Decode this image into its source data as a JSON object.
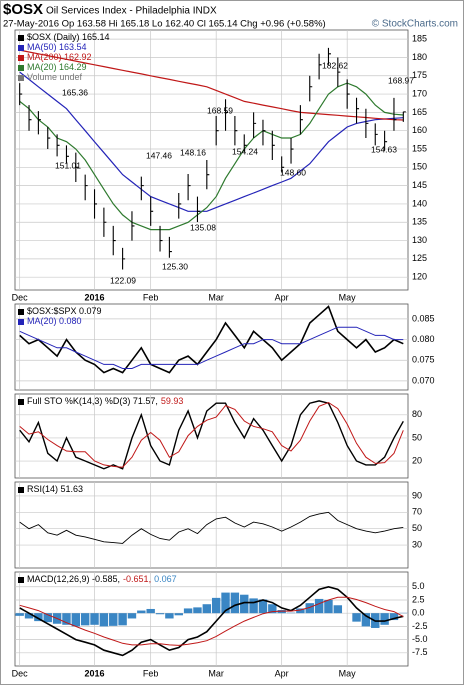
{
  "header": {
    "symbol": "$OSX",
    "name": "Oil Services Index - Philadelphia INDX",
    "quote": "27-May-2016   Op 163.58  Hi 165.18  Lo 162.40  Cl 165.14  Chg +0.96 (+0.58%)",
    "credit": "© StockCharts.com"
  },
  "chart_data": [
    {
      "type": "ohlc",
      "categories": [
        "Dec",
        null,
        null,
        null,
        null,
        null,
        null,
        null,
        "2016",
        null,
        null,
        null,
        null,
        null,
        "Feb",
        null,
        null,
        null,
        null,
        null,
        null,
        "Mar",
        null,
        null,
        null,
        null,
        null,
        null,
        "Apr",
        null,
        null,
        null,
        null,
        null,
        null,
        "May",
        null,
        null,
        null,
        null,
        null,
        null
      ],
      "legend_rows": [
        [
          {
            "text": "$OSX (Daily) 165.14",
            "color": "#000000"
          }
        ],
        [
          {
            "text": "MA(50) 163.54",
            "color": "#2424b8"
          }
        ],
        [
          {
            "text": "MA(200) 162.92",
            "color": "#c01818"
          }
        ],
        [
          {
            "text": "MA(20) 164.29",
            "color": "#2e7a2e"
          }
        ],
        [
          {
            "text": "Volume undef",
            "color": "#777777"
          }
        ]
      ],
      "ohlc": {
        "color": "#000000",
        "high": [
          173,
          167,
          165.36,
          161,
          159,
          156,
          154,
          148,
          144,
          139,
          134,
          128,
          138,
          147.46,
          142,
          134,
          131,
          143,
          148.16,
          142,
          152,
          164,
          168.59,
          164,
          159,
          165,
          163,
          160,
          153,
          158,
          167,
          175,
          181,
          182.62,
          180,
          174,
          169,
          166,
          162,
          160,
          168.97,
          165.18
        ],
        "low": [
          167,
          160,
          159,
          155,
          153,
          151.01,
          146,
          141,
          136,
          131,
          126,
          122.09,
          130,
          141,
          134,
          127,
          125.3,
          136,
          141,
          135.08,
          144,
          156,
          160,
          156,
          154.24,
          158,
          156,
          152,
          148.6,
          151,
          159,
          168,
          174,
          178,
          172,
          166,
          162,
          158,
          156,
          154.63,
          160,
          162.4
        ],
        "close": [
          170,
          163,
          163,
          158,
          156,
          153,
          150,
          145,
          140,
          135,
          130,
          125,
          134,
          145,
          138,
          130,
          127,
          140,
          145,
          138,
          148,
          160,
          165,
          160,
          156,
          162,
          160,
          156,
          150,
          155,
          163,
          172,
          178,
          181,
          176,
          170,
          166,
          162,
          159,
          157,
          163,
          165.14
        ]
      },
      "series": [
        {
          "color": "#2424b8",
          "values": [
            176,
            174,
            172,
            170,
            168,
            166,
            163,
            160,
            157,
            154,
            151,
            148,
            146,
            144,
            142,
            141,
            140,
            139,
            138,
            138,
            138,
            139,
            140,
            141,
            142,
            143,
            144,
            145,
            146,
            147,
            149,
            151,
            154,
            157,
            159,
            161,
            162,
            162.5,
            163,
            163.2,
            163.4,
            163.54
          ]
        },
        {
          "color": "#c01818",
          "values": [
            182,
            181.5,
            181,
            180.5,
            180,
            179.5,
            179,
            178.5,
            178,
            177.5,
            177,
            176.5,
            176,
            175.5,
            175,
            174.5,
            174,
            173.5,
            173,
            172.5,
            172,
            171,
            170,
            169,
            168,
            167.5,
            167,
            166.5,
            166,
            165.5,
            165,
            164.8,
            164.6,
            164.4,
            164.2,
            164,
            163.8,
            163.6,
            163.4,
            163.2,
            163,
            162.92
          ]
        },
        {
          "color": "#2e7a2e",
          "values": [
            168,
            166,
            163,
            161,
            158,
            157,
            155,
            152,
            148,
            144,
            140,
            137,
            135,
            134,
            133,
            133,
            133,
            134,
            135,
            137,
            139,
            142,
            147,
            151,
            155,
            158,
            160,
            159,
            158,
            158,
            159,
            162,
            166,
            170,
            172,
            173,
            172,
            170,
            167,
            165,
            164.5,
            164.29
          ]
        }
      ],
      "annotations": [
        "165.36",
        "151.01",
        "147.46",
        "148.16",
        "168.59",
        "154.24",
        "148.60",
        "182.62",
        "168.97",
        "154.63",
        "135.08",
        "125.30",
        "122.09"
      ],
      "ylim": [
        116.5,
        187.5
      ],
      "yticks": [
        120,
        125,
        130,
        135,
        140,
        145,
        150,
        155,
        160,
        165,
        170,
        175,
        180,
        185
      ],
      "grid": true
    },
    {
      "type": "line",
      "legend_rows": [
        [
          {
            "text": "$OSX:$SPX 0.079",
            "color": "#000000"
          }
        ],
        [
          {
            "text": "MA(20) 0.080",
            "color": "#2424b8"
          }
        ]
      ],
      "series": [
        {
          "color": "#000000",
          "width": 1.6,
          "values": [
            0.081,
            0.079,
            0.08,
            0.078,
            0.076,
            0.08,
            0.077,
            0.075,
            0.074,
            0.072,
            0.073,
            0.072,
            0.075,
            0.078,
            0.074,
            0.073,
            0.072,
            0.075,
            0.076,
            0.074,
            0.077,
            0.08,
            0.084,
            0.081,
            0.078,
            0.082,
            0.08,
            0.078,
            0.075,
            0.077,
            0.079,
            0.084,
            0.086,
            0.088,
            0.082,
            0.08,
            0.078,
            0.08,
            0.077,
            0.078,
            0.08,
            0.079
          ]
        },
        {
          "color": "#2424b8",
          "width": 1,
          "values": [
            0.082,
            0.081,
            0.08,
            0.079,
            0.078,
            0.078,
            0.077,
            0.076,
            0.075,
            0.074,
            0.074,
            0.073,
            0.073,
            0.074,
            0.074,
            0.074,
            0.074,
            0.074,
            0.074,
            0.074,
            0.075,
            0.076,
            0.077,
            0.078,
            0.079,
            0.079,
            0.08,
            0.08,
            0.079,
            0.079,
            0.079,
            0.08,
            0.081,
            0.082,
            0.083,
            0.083,
            0.083,
            0.082,
            0.081,
            0.081,
            0.08,
            0.08
          ]
        }
      ],
      "ylim": [
        0.0678,
        0.0886
      ],
      "yticks": [
        {
          "value": 0.07,
          "label": "0.070"
        },
        0.075,
        {
          "value": 0.08,
          "label": "0.080"
        },
        0.085
      ],
      "grid": true
    },
    {
      "type": "line",
      "legend_rows": [
        [
          {
            "text": "Full STO %K(14,3) %D(3) 71.57,",
            "color": "#000000"
          },
          {
            "text": "59.93",
            "color": "#c01818"
          }
        ]
      ],
      "series": [
        {
          "color": "#000000",
          "width": 1.4,
          "values": [
            60,
            45,
            70,
            30,
            20,
            50,
            25,
            20,
            15,
            10,
            15,
            10,
            50,
            80,
            40,
            20,
            15,
            60,
            85,
            50,
            85,
            95,
            95,
            70,
            50,
            75,
            60,
            40,
            20,
            40,
            80,
            95,
            98,
            95,
            70,
            40,
            20,
            15,
            15,
            25,
            50,
            71.57
          ]
        },
        {
          "color": "#c01818",
          "width": 1,
          "values": [
            65,
            55,
            58,
            48,
            40,
            33,
            32,
            32,
            20,
            15,
            13,
            12,
            25,
            47,
            57,
            47,
            25,
            32,
            53,
            65,
            73,
            77,
            92,
            87,
            72,
            65,
            62,
            58,
            40,
            33,
            47,
            72,
            91,
            96,
            88,
            68,
            43,
            25,
            17,
            18,
            30,
            59.93
          ]
        }
      ],
      "ylim": [
        -2,
        107
      ],
      "yticks": [
        20,
        50,
        80
      ],
      "grid": true
    },
    {
      "type": "line",
      "legend_rows": [
        [
          {
            "text": "RSI(14) 51.63",
            "color": "#000000"
          }
        ]
      ],
      "series": [
        {
          "color": "#000000",
          "width": 0.9,
          "values": [
            58,
            50,
            55,
            45,
            42,
            48,
            42,
            40,
            37,
            34,
            33,
            32,
            42,
            50,
            43,
            38,
            36,
            46,
            50,
            44,
            55,
            62,
            64,
            57,
            52,
            58,
            56,
            52,
            47,
            52,
            58,
            65,
            68,
            70,
            60,
            55,
            50,
            47,
            45,
            47,
            50,
            51.63
          ]
        }
      ],
      "ylim": [
        2,
        107
      ],
      "yticks": [
        30,
        50,
        70,
        90
      ],
      "grid": true
    },
    {
      "type": "macd",
      "categories": [
        "Dec",
        null,
        null,
        null,
        null,
        null,
        null,
        null,
        "2016",
        null,
        null,
        null,
        null,
        null,
        "Feb",
        null,
        null,
        null,
        null,
        null,
        null,
        "Mar",
        null,
        null,
        null,
        null,
        null,
        null,
        "Apr",
        null,
        null,
        null,
        null,
        null,
        null,
        "May",
        null,
        null,
        null,
        null,
        null,
        null
      ],
      "legend_rows": [
        [
          {
            "text": "MACD(12,26,9) -0.585,",
            "color": "#000000"
          },
          {
            "text": "-0.651,",
            "color": "#c01818"
          },
          {
            "text": "0.067",
            "color": "#3a86c4"
          }
        ]
      ],
      "series": [
        {
          "color": "#3a86c4",
          "style": "histogram",
          "values": [
            -0.5,
            -1,
            -1.5,
            -1.7,
            -2,
            -2.2,
            -2.5,
            -2.3,
            -2.2,
            -2.5,
            -2.4,
            -2.3,
            -1,
            0.5,
            0.8,
            -0.2,
            -1,
            -0.4,
            0.9,
            1.1,
            1.7,
            2.9,
            3.9,
            3.9,
            3.5,
            2.8,
            2.6,
            1.7,
            0.6,
            0.1,
            0.9,
            1.9,
            2.7,
            2.5,
            1.5,
            0,
            -1.6,
            -2.5,
            -2.8,
            -2.2,
            -1.3,
            0.067
          ]
        },
        {
          "color": "#000000",
          "width": 1.6,
          "values": [
            1,
            0,
            -1,
            -2,
            -3,
            -4,
            -5,
            -5.5,
            -6,
            -7,
            -7.5,
            -8,
            -7,
            -5.5,
            -5,
            -6,
            -7,
            -6.5,
            -5,
            -4.5,
            -3.5,
            -1.5,
            0.5,
            1.5,
            2,
            2,
            2.5,
            2,
            1,
            0.5,
            1.5,
            3,
            4.5,
            5,
            4.5,
            3,
            1,
            -0.5,
            -1.5,
            -1.5,
            -1,
            -0.585
          ]
        },
        {
          "color": "#c01818",
          "width": 1,
          "values": [
            1.5,
            1,
            0.5,
            -0.3,
            -1,
            -1.8,
            -2.5,
            -3.2,
            -3.8,
            -4.5,
            -5.1,
            -5.7,
            -6,
            -6,
            -5.8,
            -5.8,
            -6,
            -6.1,
            -5.9,
            -5.6,
            -5.2,
            -4.4,
            -3.4,
            -2.4,
            -1.5,
            -0.8,
            -0.1,
            0.3,
            0.4,
            0.4,
            0.6,
            1.1,
            1.8,
            2.5,
            3,
            3,
            2.6,
            2,
            1.3,
            0.7,
            0.3,
            -0.651
          ]
        }
      ],
      "ylim": [
        -10,
        7.8
      ],
      "yticks": [
        {
          "value": 5,
          "label": "5.0"
        },
        2.5,
        {
          "value": 0,
          "label": "0.0"
        },
        -2.5,
        {
          "value": -5,
          "label": "-5.0"
        },
        -7.5
      ],
      "grid": true
    }
  ]
}
